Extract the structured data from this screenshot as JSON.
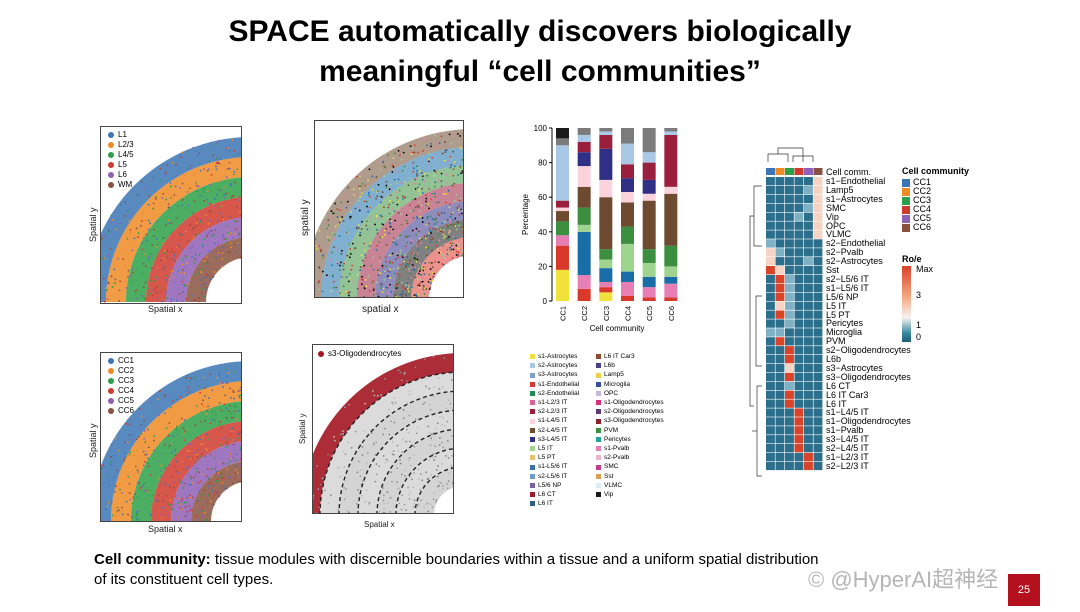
{
  "title_line1": "SPACE automatically discovers biologically",
  "title_line2": "meaningful “cell communities”",
  "panel_a": {
    "xlabel": "Spatial x",
    "ylabel": "Spatial y",
    "legend": [
      {
        "label": "L1",
        "color": "#3b75b4"
      },
      {
        "label": "L2/3",
        "color": "#f08a24"
      },
      {
        "label": "L4/5",
        "color": "#2ca048"
      },
      {
        "label": "L5",
        "color": "#d03a2e"
      },
      {
        "label": "L6",
        "color": "#8e5fb6"
      },
      {
        "label": "WM",
        "color": "#8a5140"
      }
    ]
  },
  "panel_b": {
    "xlabel": "spatial x",
    "ylabel": "spatial y"
  },
  "panel_c": {
    "xlabel": "Spatial x",
    "ylabel": "Spatial y",
    "legend": [
      {
        "label": "CC1",
        "color": "#3b75b4"
      },
      {
        "label": "CC2",
        "color": "#f08a24"
      },
      {
        "label": "CC3",
        "color": "#2ca048"
      },
      {
        "label": "CC4",
        "color": "#d03a2e"
      },
      {
        "label": "CC5",
        "color": "#8e5fb6"
      },
      {
        "label": "CC6",
        "color": "#8a5140"
      }
    ]
  },
  "panel_d": {
    "xlabel": "Spatial x",
    "ylabel": "Spatial y",
    "legend_label": "s3-Oligodendrocytes",
    "legend_color": "#a31622"
  },
  "chart_data": {
    "type": "bar",
    "stacked": true,
    "categories": [
      "CC1",
      "CC2",
      "CC3",
      "CC4",
      "CC5",
      "CC6"
    ],
    "xlabel": "Cell community",
    "ylabel": "Percentage",
    "ylim": [
      0,
      100
    ],
    "yticks": [
      "0",
      "20",
      "40",
      "60",
      "80",
      "100"
    ],
    "series_values": [
      {
        "color": "#f0e23a",
        "values": [
          18,
          0,
          5,
          0,
          0,
          0
        ]
      },
      {
        "color": "#d8392b",
        "values": [
          14,
          7,
          3,
          3,
          2,
          2
        ]
      },
      {
        "color": "#e77fb4",
        "values": [
          6,
          8,
          3,
          8,
          6,
          8
        ]
      },
      {
        "color": "#1a6ea8",
        "values": [
          0,
          25,
          8,
          6,
          6,
          4
        ]
      },
      {
        "color": "#9fd48f",
        "values": [
          0,
          4,
          5,
          16,
          8,
          6
        ]
      },
      {
        "color": "#3b8f3f",
        "values": [
          8,
          10,
          6,
          10,
          8,
          12
        ]
      },
      {
        "color": "#6d4a30",
        "values": [
          6,
          12,
          30,
          14,
          28,
          30
        ]
      },
      {
        "color": "#fbd3dd",
        "values": [
          2,
          12,
          10,
          6,
          4,
          4
        ]
      },
      {
        "color": "#2f2f86",
        "values": [
          0,
          8,
          18,
          8,
          8,
          0
        ]
      },
      {
        "color": "#9a1f3c",
        "values": [
          4,
          6,
          8,
          8,
          10,
          30
        ]
      },
      {
        "color": "#a9c8e6",
        "values": [
          32,
          4,
          2,
          12,
          6,
          2
        ]
      },
      {
        "color": "#7b7b7b",
        "values": [
          4,
          4,
          2,
          9,
          14,
          2
        ]
      },
      {
        "color": "#1a1a1a",
        "values": [
          6,
          0,
          0,
          0,
          0,
          0
        ]
      }
    ]
  },
  "cell_types_legend": {
    "col1": [
      {
        "label": "s1-Astrocytes",
        "color": "#f0e23a"
      },
      {
        "label": "s2-Astrocytes",
        "color": "#a9c8e6"
      },
      {
        "label": "s3-Astrocytes",
        "color": "#7f9ccf"
      },
      {
        "label": "s1-Endothelial",
        "color": "#d8392b"
      },
      {
        "label": "s2-Endothelial",
        "color": "#1f8a55"
      },
      {
        "label": "s1-L2/3 IT",
        "color": "#d95f97"
      },
      {
        "label": "s2-L2/3 IT",
        "color": "#9a1f3c"
      },
      {
        "label": "s1-L4/5 IT",
        "color": "#fbd3dd"
      },
      {
        "label": "s2-L4/5 IT",
        "color": "#6d4a30"
      },
      {
        "label": "s3-L4/5 IT",
        "color": "#2f2f86"
      },
      {
        "label": "L5 IT",
        "color": "#9fd48f"
      },
      {
        "label": "L5 PT",
        "color": "#e8c071"
      },
      {
        "label": "s1-L5/6 IT",
        "color": "#3a6fa8"
      },
      {
        "label": "s2-L5/6 IT",
        "color": "#6aa0c8"
      },
      {
        "label": "L5/6 NP",
        "color": "#7a5fa0"
      },
      {
        "label": "L6 CT",
        "color": "#a0182b"
      },
      {
        "label": "L6 IT",
        "color": "#2c5f8a"
      }
    ],
    "col2": [
      {
        "label": "L6 IT Car3",
        "color": "#8a4b2d"
      },
      {
        "label": "L6b",
        "color": "#4a3f8a"
      },
      {
        "label": "Lamp5",
        "color": "#f4d046"
      },
      {
        "label": "Microglia",
        "color": "#3b4ea0"
      },
      {
        "label": "OPC",
        "color": "#c9b8dd"
      },
      {
        "label": "s1-Oligodendrocytes",
        "color": "#d82e7a"
      },
      {
        "label": "s2-Oligodendrocytes",
        "color": "#5a3a7a"
      },
      {
        "label": "s3-Oligodendrocytes",
        "color": "#8a1f2a"
      },
      {
        "label": "PVM",
        "color": "#3b8f3f"
      },
      {
        "label": "Pericytes",
        "color": "#1fa39a"
      },
      {
        "label": "s1-Pvalb",
        "color": "#e77fb4"
      },
      {
        "label": "s2-Pvalb",
        "color": "#f2b6c8"
      },
      {
        "label": "SMC",
        "color": "#c33b8e"
      },
      {
        "label": "Sst",
        "color": "#d9a050"
      },
      {
        "label": "VLMC",
        "color": "#dcecf5"
      },
      {
        "label": "Vip",
        "color": "#1a1a1a"
      }
    ]
  },
  "heatmap": {
    "header_label": "Cell comm.",
    "rows": [
      "s1−Endothelial",
      "Lamp5",
      "s1−Astrocytes",
      "SMC",
      "Vip",
      "OPC",
      "VLMC",
      "s2−Endothelial",
      "s2−Pvalb",
      "s2−Astrocytes",
      "Sst",
      "s2−L5/6 IT",
      "s1−L5/6 IT",
      "L5/6 NP",
      "L5 IT",
      "L5 PT",
      "Pericytes",
      "Microglia",
      "PVM",
      "s2−Oligodendrocytes",
      "L6b",
      "s3−Astrocytes",
      "s3−Oligodendrocytes",
      "L6 CT",
      "L6 IT Car3",
      "L6 IT",
      "s1−L4/5 IT",
      "s1−Oligodendrocytes",
      "s1−Pvalb",
      "s3−L4/5 IT",
      "s2−L4/5 IT",
      "s1−L2/3 IT",
      "s2−L2/3 IT"
    ],
    "column_colors": [
      "#3b75b4",
      "#f08a24",
      "#2ca048",
      "#d03a2e",
      "#8e5fb6",
      "#8a5140"
    ],
    "grid": [
      [
        0,
        0,
        0,
        0,
        0,
        2
      ],
      [
        0,
        0,
        0,
        0,
        1,
        2
      ],
      [
        0,
        0,
        0,
        0,
        0,
        2
      ],
      [
        0,
        0,
        0,
        0,
        1,
        2
      ],
      [
        0,
        0,
        0,
        1,
        0,
        2
      ],
      [
        0,
        0,
        0,
        0,
        0,
        2
      ],
      [
        0,
        0,
        0,
        0,
        0,
        2
      ],
      [
        1,
        0,
        0,
        0,
        0,
        0
      ],
      [
        2,
        1,
        0,
        0,
        0,
        0
      ],
      [
        2,
        0,
        0,
        0,
        1,
        0
      ],
      [
        3,
        2,
        0,
        0,
        0,
        0
      ],
      [
        0,
        3,
        1,
        0,
        0,
        0
      ],
      [
        0,
        3,
        1,
        0,
        0,
        0
      ],
      [
        0,
        3,
        1,
        0,
        0,
        0
      ],
      [
        0,
        2,
        1,
        0,
        0,
        0
      ],
      [
        0,
        3,
        1,
        0,
        0,
        0
      ],
      [
        0,
        0,
        1,
        0,
        0,
        0
      ],
      [
        1,
        1,
        0,
        0,
        0,
        0
      ],
      [
        0,
        3,
        0,
        0,
        0,
        0
      ],
      [
        0,
        0,
        3,
        0,
        0,
        0
      ],
      [
        0,
        0,
        3,
        0,
        0,
        0
      ],
      [
        0,
        0,
        2,
        0,
        0,
        0
      ],
      [
        0,
        0,
        3,
        0,
        0,
        0
      ],
      [
        0,
        0,
        1,
        0,
        0,
        0
      ],
      [
        0,
        0,
        3,
        0,
        0,
        0
      ],
      [
        0,
        0,
        3,
        0,
        0,
        0
      ],
      [
        0,
        0,
        0,
        3,
        0,
        0
      ],
      [
        0,
        0,
        0,
        3,
        0,
        0
      ],
      [
        0,
        0,
        0,
        3,
        0,
        0
      ],
      [
        0,
        0,
        0,
        3,
        0,
        0
      ],
      [
        0,
        0,
        0,
        3,
        0,
        0
      ],
      [
        0,
        0,
        0,
        0,
        3,
        0
      ],
      [
        0,
        0,
        0,
        0,
        3,
        0
      ]
    ],
    "legend_title": "Cell community",
    "legend": [
      {
        "label": "CC1",
        "color": "#3b75b4"
      },
      {
        "label": "CC2",
        "color": "#f08a24"
      },
      {
        "label": "CC3",
        "color": "#2ca048"
      },
      {
        "label": "CC4",
        "color": "#d03a2e"
      },
      {
        "label": "CC5",
        "color": "#8e5fb6"
      },
      {
        "label": "CC6",
        "color": "#8a5140"
      }
    ],
    "scale_title": "Ro/e",
    "scale_labels": [
      "Max",
      "3",
      "1",
      "0"
    ]
  },
  "bottom": {
    "term": "Cell community:",
    "text": " tissue modules with discernible boundaries within a tissue and a uniform spatial distribution",
    "text2": "of its constituent cell types."
  },
  "watermark": "© @HyperAI超神经",
  "page_number": "25"
}
